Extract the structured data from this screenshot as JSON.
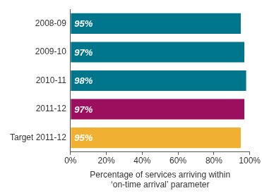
{
  "chart_data": {
    "type": "bar",
    "orientation": "horizontal",
    "categories": [
      "2008-09",
      "2009-10",
      "2010-11",
      "2011-12",
      "Target 2011-12"
    ],
    "values": [
      95,
      97,
      98,
      97,
      95
    ],
    "value_labels": [
      "95%",
      "97%",
      "98%",
      "97%",
      "95%"
    ],
    "colors": [
      "#00768c",
      "#00768c",
      "#00768c",
      "#9b0f5e",
      "#f0b132"
    ],
    "data_labels": true,
    "x_label": [
      "Percentage of services arriving within",
      "‘on-time arrival’ parameter"
    ],
    "xlim": [
      0,
      100
    ],
    "xticks": [
      {
        "value": 0,
        "label": "0%"
      },
      {
        "value": 20,
        "label": "20%"
      },
      {
        "value": 40,
        "label": "40%"
      },
      {
        "value": 60,
        "label": "60%"
      },
      {
        "value": 80,
        "label": "80%"
      },
      {
        "value": 100,
        "label": "100%"
      }
    ],
    "grid": false
  }
}
